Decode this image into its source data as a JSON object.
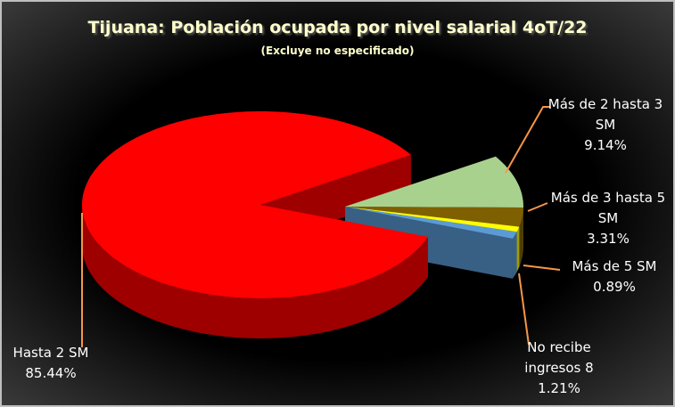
{
  "chart_data": {
    "type": "pie3d",
    "title": "Tijuana: Población ocupada por nivel salarial 4oT/22",
    "subtitle": "(Excluye no especificado)",
    "categories": [
      "Hasta 2 SM",
      "Más de 2 hasta 3 SM",
      "Más de 3 hasta 5 SM",
      "Más de 5 SM",
      "No recibe ingresos 8"
    ],
    "values": [
      85.44,
      9.14,
      3.31,
      0.89,
      1.21
    ],
    "value_labels": [
      "85.44%",
      "9.14%",
      "3.31%",
      "0.89%",
      "1.21%"
    ],
    "colors": [
      "#ff0000",
      "#a9d18e",
      "#7f6000",
      "#ffff00",
      "#5b9bd5"
    ]
  }
}
